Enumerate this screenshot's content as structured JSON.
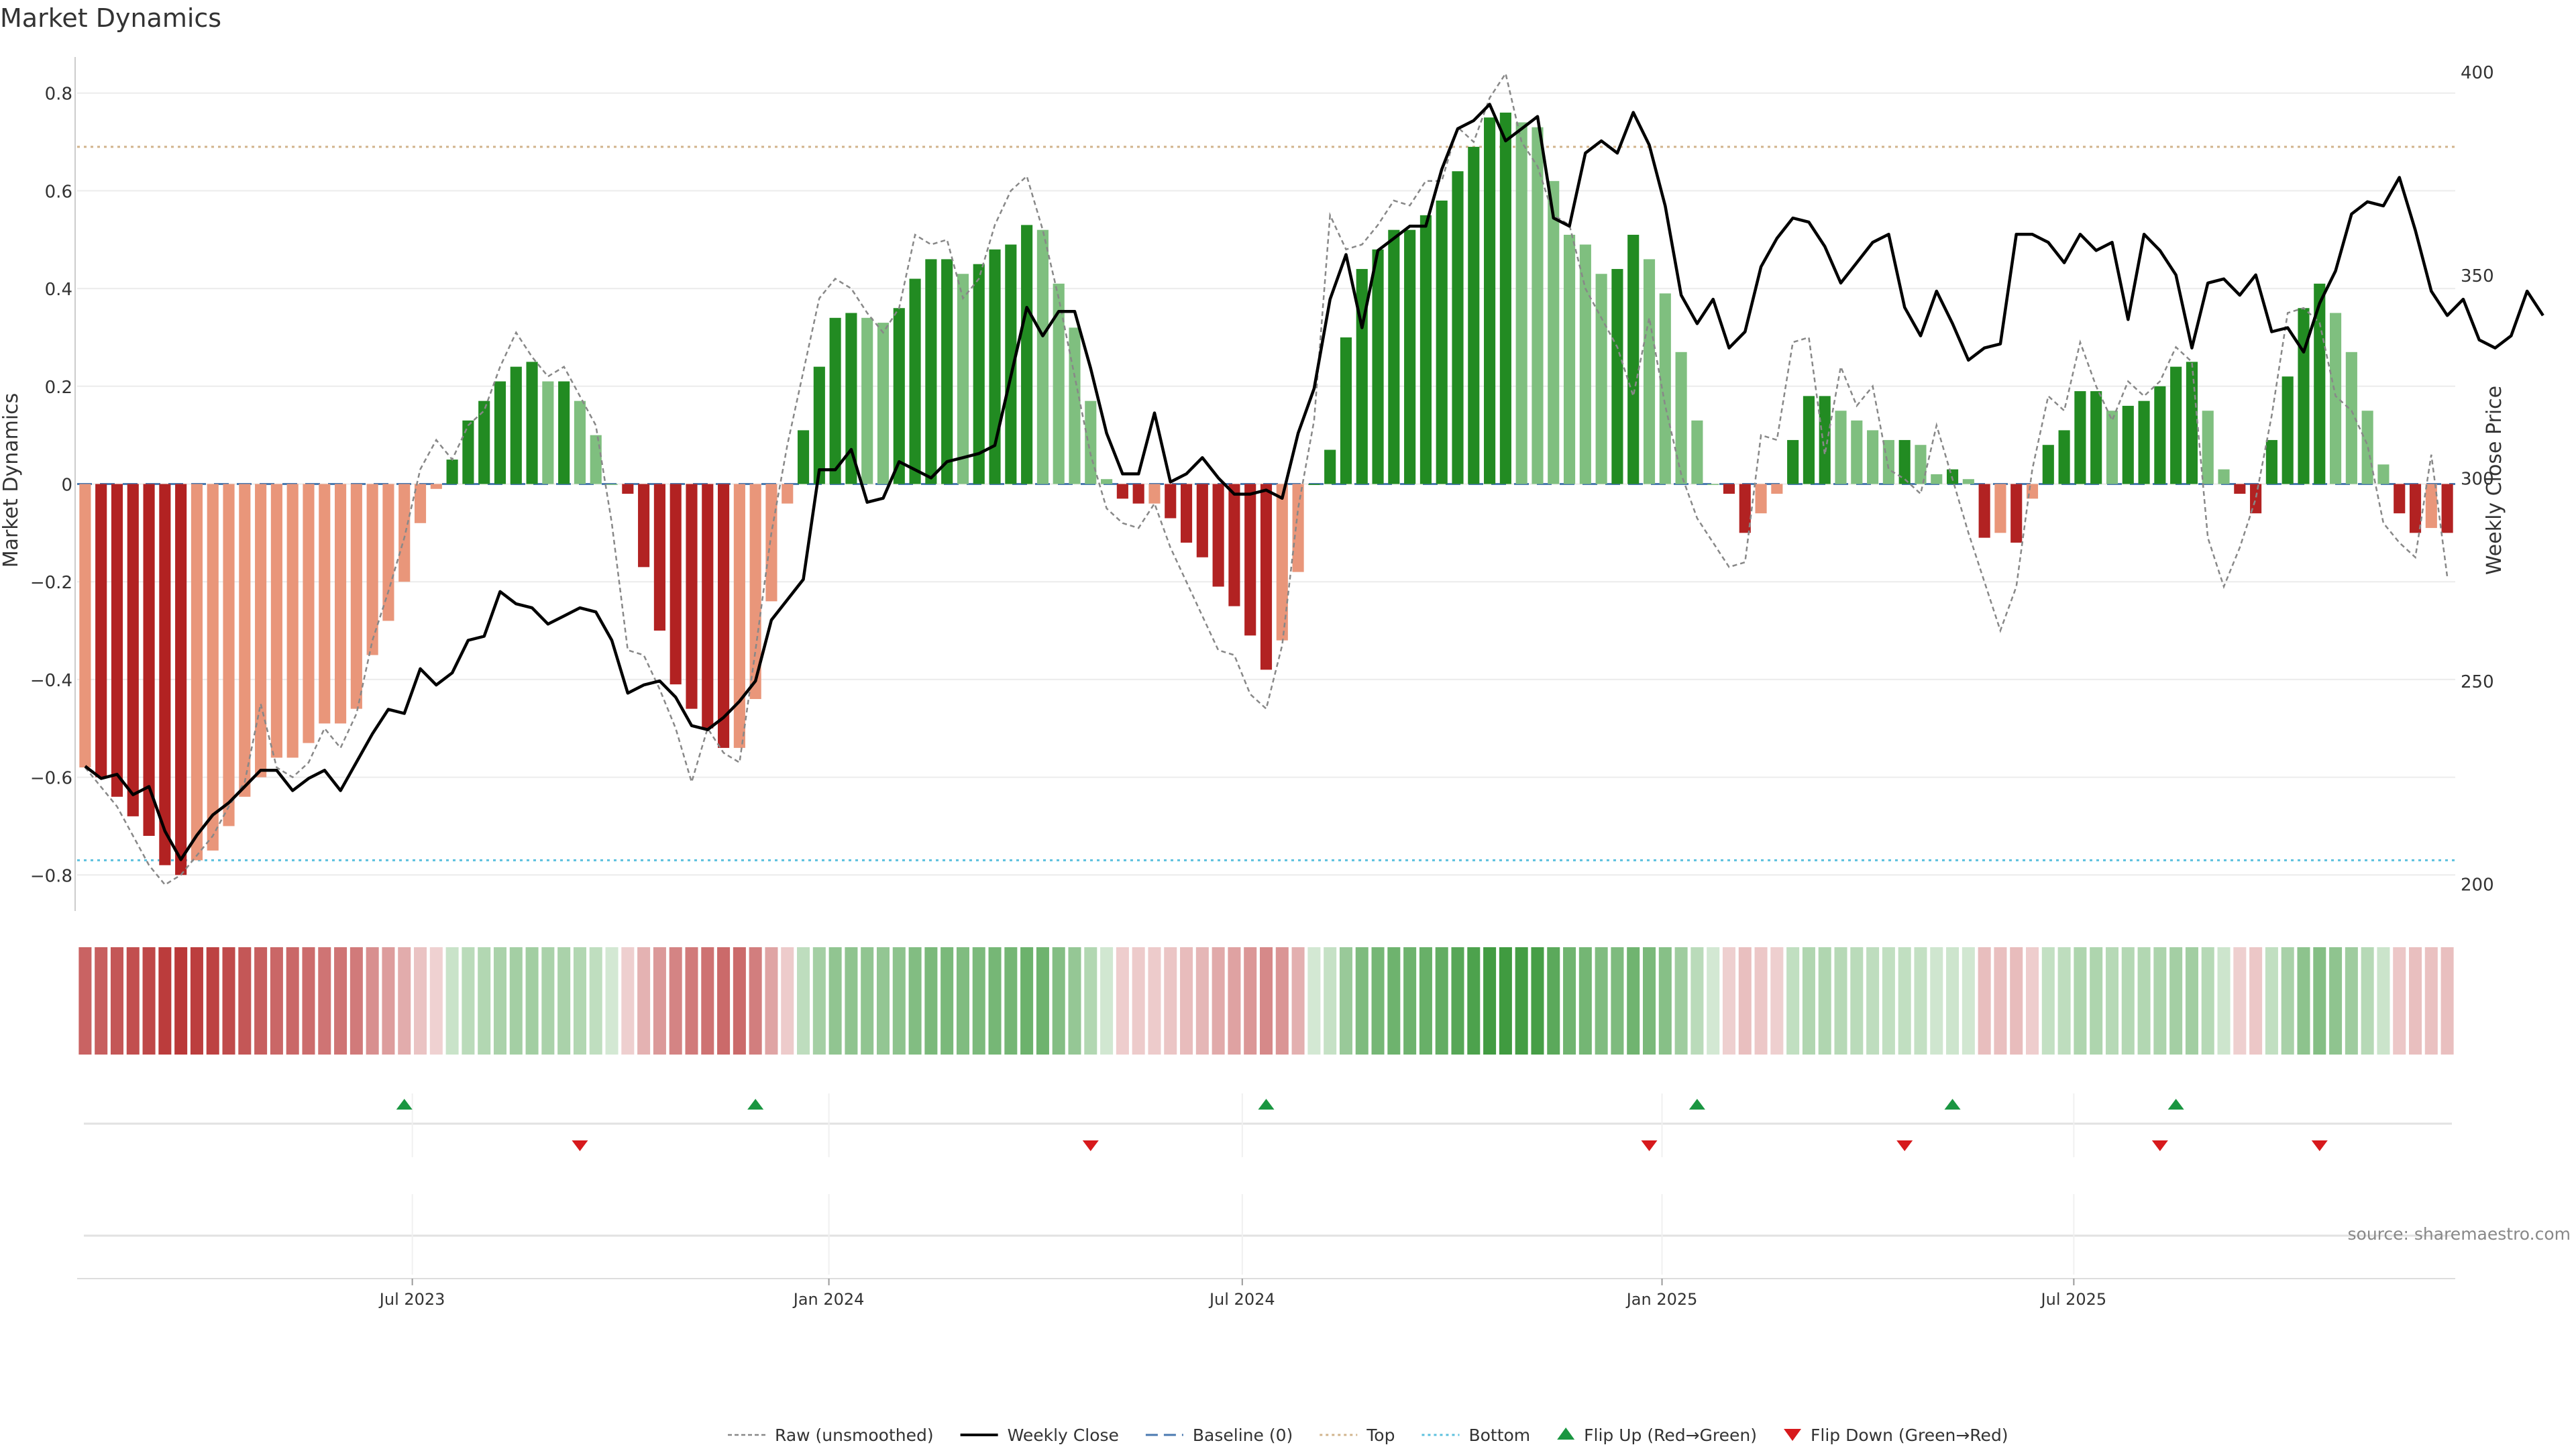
{
  "chart_data": {
    "type": "bar",
    "title": "Market Dynamics",
    "ylabel": "Market Dynamics",
    "y2label": "Weekly Close Price",
    "ylim": [
      -0.86,
      0.86
    ],
    "y2lim": [
      195,
      402
    ],
    "yticks": [
      {
        "v": -0.8,
        "label": "−0.8"
      },
      {
        "v": -0.6,
        "label": "−0.6"
      },
      {
        "v": -0.4,
        "label": "−0.4"
      },
      {
        "v": -0.2,
        "label": "−0.2"
      },
      {
        "v": 0,
        "label": "0"
      },
      {
        "v": 0.2,
        "label": "0.2"
      },
      {
        "v": 0.4,
        "label": "0.4"
      },
      {
        "v": 0.6,
        "label": "0.6"
      },
      {
        "v": 0.8,
        "label": "0.8"
      }
    ],
    "y2ticks": [
      {
        "v": 200,
        "label": "200"
      },
      {
        "v": 250,
        "label": "250"
      },
      {
        "v": 300,
        "label": "300"
      },
      {
        "v": 350,
        "label": "350"
      },
      {
        "v": 400,
        "label": "400"
      }
    ],
    "xticks": [
      {
        "week": 20.5,
        "label": "Jul 2023"
      },
      {
        "week": 46.6,
        "label": "Jan 2024"
      },
      {
        "week": 72.5,
        "label": "Jul 2024"
      },
      {
        "week": 98.8,
        "label": "Jan 2025"
      },
      {
        "week": 124.6,
        "label": "Jul 2025"
      }
    ],
    "top_threshold": 0.69,
    "bottom_threshold": -0.77,
    "bars": [
      -0.58,
      -0.6,
      -0.64,
      -0.68,
      -0.72,
      -0.78,
      -0.8,
      -0.77,
      -0.75,
      -0.7,
      -0.64,
      -0.6,
      -0.56,
      -0.56,
      -0.53,
      -0.49,
      -0.49,
      -0.46,
      -0.35,
      -0.28,
      -0.2,
      -0.08,
      -0.01,
      0.05,
      0.13,
      0.17,
      0.21,
      0.24,
      0.25,
      0.21,
      0.21,
      0.17,
      0.1,
      0.0,
      -0.02,
      -0.17,
      -0.3,
      -0.41,
      -0.46,
      -0.5,
      -0.54,
      -0.54,
      -0.44,
      -0.24,
      -0.04,
      0.11,
      0.24,
      0.34,
      0.35,
      0.34,
      0.33,
      0.36,
      0.42,
      0.46,
      0.46,
      0.43,
      0.45,
      0.48,
      0.49,
      0.53,
      0.52,
      0.41,
      0.32,
      0.17,
      0.01,
      -0.03,
      -0.04,
      -0.04,
      -0.07,
      -0.12,
      -0.15,
      -0.21,
      -0.25,
      -0.31,
      -0.38,
      -0.32,
      -0.18,
      0.0,
      0.07,
      0.3,
      0.44,
      0.48,
      0.52,
      0.52,
      0.55,
      0.58,
      0.64,
      0.69,
      0.75,
      0.76,
      0.74,
      0.73,
      0.62,
      0.51,
      0.49,
      0.43,
      0.44,
      0.51,
      0.46,
      0.39,
      0.27,
      0.13,
      0.0,
      -0.02,
      -0.1,
      -0.06,
      -0.02,
      0.09,
      0.18,
      0.18,
      0.15,
      0.13,
      0.11,
      0.09,
      0.09,
      0.08,
      0.02,
      0.03,
      0.01,
      -0.11,
      -0.1,
      -0.12,
      -0.03,
      0.08,
      0.11,
      0.19,
      0.19,
      0.15,
      0.16,
      0.17,
      0.2,
      0.24,
      0.25,
      0.15,
      0.03,
      -0.02,
      -0.06,
      0.09,
      0.22,
      0.36,
      0.41,
      0.35,
      0.27,
      0.15,
      0.04,
      -0.06,
      -0.1,
      -0.09,
      -0.1
    ],
    "close": [
      229,
      226,
      227,
      222,
      224,
      213,
      206,
      212,
      217,
      220,
      224,
      228,
      228,
      223,
      226,
      228,
      223,
      230,
      237,
      243,
      242,
      253,
      249,
      252,
      260,
      261,
      272,
      269,
      268,
      264,
      266,
      268,
      267,
      260,
      247,
      249,
      250,
      246,
      239,
      238,
      241,
      245,
      250,
      265,
      270,
      275,
      302,
      302,
      307,
      294,
      295,
      304,
      302,
      300,
      304,
      305,
      306,
      308,
      325,
      342,
      335,
      341,
      341,
      327,
      311,
      301,
      301,
      316,
      299,
      301,
      305,
      300,
      296,
      296,
      297,
      295,
      311,
      322,
      344,
      355,
      337,
      356,
      359,
      362,
      362,
      376,
      386,
      388,
      392,
      383,
      386,
      389,
      364,
      362,
      380,
      383,
      380,
      390,
      382,
      367,
      345,
      338,
      344,
      332,
      336,
      352,
      359,
      364,
      363,
      357,
      348,
      353,
      358,
      360,
      342,
      335,
      346,
      338,
      329,
      332,
      333,
      360,
      360,
      358,
      353,
      360,
      356,
      358,
      339,
      360,
      356,
      350,
      332,
      348,
      349,
      345,
      350,
      336,
      337,
      331,
      343,
      351,
      365,
      368,
      367,
      374,
      361,
      346,
      340,
      344,
      334,
      332,
      335,
      346,
      340
    ],
    "raw": [
      -0.58,
      -0.62,
      -0.66,
      -0.72,
      -0.78,
      -0.82,
      -0.8,
      -0.76,
      -0.72,
      -0.66,
      -0.61,
      -0.45,
      -0.58,
      -0.6,
      -0.57,
      -0.5,
      -0.54,
      -0.47,
      -0.32,
      -0.22,
      -0.11,
      0.03,
      0.09,
      0.05,
      0.12,
      0.15,
      0.24,
      0.31,
      0.26,
      0.22,
      0.24,
      0.18,
      0.12,
      -0.08,
      -0.34,
      -0.35,
      -0.42,
      -0.5,
      -0.61,
      -0.5,
      -0.55,
      -0.57,
      -0.34,
      -0.1,
      0.08,
      0.23,
      0.38,
      0.42,
      0.4,
      0.35,
      0.31,
      0.36,
      0.51,
      0.49,
      0.5,
      0.38,
      0.42,
      0.53,
      0.6,
      0.63,
      0.52,
      0.38,
      0.22,
      0.06,
      -0.05,
      -0.08,
      -0.09,
      -0.04,
      -0.13,
      -0.2,
      -0.27,
      -0.34,
      -0.35,
      -0.43,
      -0.46,
      -0.33,
      -0.05,
      0.13,
      0.55,
      0.48,
      0.49,
      0.53,
      0.58,
      0.57,
      0.62,
      0.62,
      0.73,
      0.7,
      0.79,
      0.84,
      0.7,
      0.65,
      0.55,
      0.53,
      0.4,
      0.34,
      0.28,
      0.18,
      0.34,
      0.16,
      0.02,
      -0.07,
      -0.12,
      -0.17,
      -0.16,
      0.1,
      0.09,
      0.29,
      0.3,
      0.06,
      0.24,
      0.16,
      0.2,
      0.03,
      0.01,
      -0.02,
      0.12,
      0.01,
      -0.1,
      -0.2,
      -0.3,
      -0.21,
      0.03,
      0.18,
      0.15,
      0.29,
      0.2,
      0.13,
      0.21,
      0.18,
      0.21,
      0.28,
      0.25,
      -0.11,
      -0.21,
      -0.13,
      -0.03,
      0.14,
      0.35,
      0.36,
      0.33,
      0.18,
      0.15,
      0.08,
      -0.08,
      -0.12,
      -0.15,
      0.06,
      -0.19
    ],
    "flip_up_weeks": [
      20,
      42,
      74,
      101,
      117,
      131
    ],
    "flip_down_weeks": [
      31,
      63,
      98,
      114,
      130,
      140
    ],
    "legend_placement": "bottom-center",
    "grid": true,
    "source_note": "source: sharemaestro.com"
  },
  "legend": [
    {
      "key": "raw",
      "label": "Raw (unsmoothed)"
    },
    {
      "key": "close",
      "label": "Weekly Close"
    },
    {
      "key": "baseline",
      "label": "Baseline (0)"
    },
    {
      "key": "top",
      "label": "Top"
    },
    {
      "key": "bottom",
      "label": "Bottom"
    },
    {
      "key": "flipup",
      "label": "Flip Up (Red→Green)"
    },
    {
      "key": "flipdown",
      "label": "Flip Down (Green→Red)"
    }
  ],
  "colors": {
    "strong_green": "#228b22",
    "light_green": "#7fbf7f",
    "strong_red": "#b22222",
    "light_red": "#e9967a",
    "close_line": "#000000",
    "raw_line": "#888888",
    "baseline": "#4a7ab0",
    "top": "#d2b48c",
    "bottom": "#5bc0de",
    "flip_up": "#1a9641",
    "flip_down": "#d7191c",
    "grid": "#ececec",
    "axis_text": "#333333",
    "source_text": "#888888"
  }
}
